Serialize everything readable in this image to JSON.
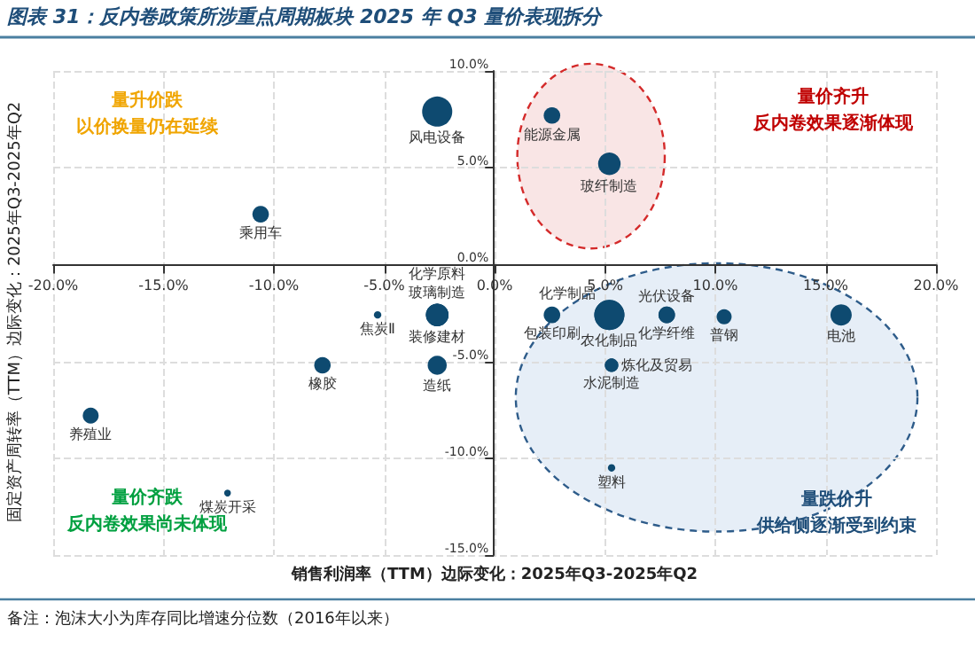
{
  "chart_data": {
    "type": "bubble",
    "title": "图表 31：反内卷政策所涉重点周期板块 2025 年 Q3 量价表现拆分",
    "xlabel": "销售利润率（TTM）边际变化：2025年Q3-2025年Q2",
    "ylabel": "固定资产周转率（TTM）边际变化：2025年Q3-2025年Q2",
    "annotations": [
      "量升价跌",
      "以价换量仍在延续",
      "量价齐升",
      "反内卷效果逐渐体现",
      "量价齐跌",
      "反内卷效果尚未体现",
      "量跌价升",
      "供给侧逐渐受到约束",
      "备注：泡沫大小为库存同比增速分位数（2016年以来）"
    ],
    "xlim": [
      -20,
      20
    ],
    "xticks": [
      {
        "value": -20,
        "label": "-20.0%"
      },
      {
        "value": -15,
        "label": "-15.0%"
      },
      {
        "value": -10,
        "label": "-10.0%"
      },
      {
        "value": -5,
        "label": "-5.0%"
      },
      {
        "value": 0,
        "label": "0.0%"
      },
      {
        "value": 5,
        "label": "5.0%"
      },
      {
        "value": 10,
        "label": "10.0%"
      },
      {
        "value": 15,
        "label": "15.0%"
      },
      {
        "value": 20,
        "label": "20.0%"
      }
    ],
    "ylim": [
      -15,
      10
    ],
    "yticks": [
      {
        "value": -15,
        "label": "-15.0%"
      },
      {
        "value": -10,
        "label": "-10.0%"
      },
      {
        "value": -5,
        "label": "-5.0%"
      },
      {
        "value": 0,
        "label": "0.0%"
      },
      {
        "value": 5,
        "label": "5.0%"
      },
      {
        "value": 10,
        "label": "10.0%"
      }
    ],
    "grid": true,
    "legend": false,
    "series": [
      {
        "name": "风电设备",
        "color": "#0e4a70",
        "x": [
          -2.6
        ],
        "values": [
          7.9
        ],
        "sizes": [
          1
        ]
      },
      {
        "name": "乘用车",
        "color": "#0e4a70",
        "x": [
          -10.6
        ],
        "values": [
          2.6
        ],
        "sizes": [
          0.3
        ]
      },
      {
        "name": "能源金属",
        "color": "#0e4a70",
        "x": [
          2.6
        ],
        "values": [
          7.7
        ],
        "sizes": [
          0.3
        ]
      },
      {
        "name": "玻纤制造",
        "color": "#0e4a70",
        "x": [
          5.2
        ],
        "values": [
          5.2
        ],
        "sizes": [
          0.56
        ]
      },
      {
        "name": "装修建材",
        "color": "#0e4a70",
        "x": [
          -2.6
        ],
        "values": [
          -2.6
        ],
        "sizes": [
          0.56
        ]
      },
      {
        "name": "玻璃制造",
        "color": "#0e4a70",
        "x": [
          -2.6
        ],
        "values": [
          -2.6
        ],
        "sizes": [
          0.56
        ]
      },
      {
        "name": "化学原料",
        "color": "#0e4a70",
        "x": [
          -2.6
        ],
        "values": [
          -2.6
        ],
        "sizes": [
          0.56
        ]
      },
      {
        "name": "焦炭Ⅱ",
        "color": "#0e4a70",
        "x": [
          -5.3
        ],
        "values": [
          -2.6
        ],
        "sizes": [
          0.06
        ]
      },
      {
        "name": "橡胶",
        "color": "#0e4a70",
        "x": [
          -7.8
        ],
        "values": [
          -5.2
        ],
        "sizes": [
          0.3
        ]
      },
      {
        "name": "造纸",
        "color": "#0e4a70",
        "x": [
          -2.6
        ],
        "values": [
          -5.2
        ],
        "sizes": [
          0.4
        ]
      },
      {
        "name": "养殖业",
        "color": "#0e4a70",
        "x": [
          -18.3
        ],
        "values": [
          -7.8
        ],
        "sizes": [
          0.28
        ]
      },
      {
        "name": "煤炭开采",
        "color": "#0e4a70",
        "x": [
          -12.1
        ],
        "values": [
          -11.8
        ],
        "sizes": [
          0.05
        ]
      },
      {
        "name": "包装印刷",
        "color": "#0e4a70",
        "x": [
          2.6
        ],
        "values": [
          -2.6
        ],
        "sizes": [
          0.3
        ]
      },
      {
        "name": "农化制品",
        "color": "#0e4a70",
        "x": [
          5.2
        ],
        "values": [
          -2.6
        ],
        "sizes": [
          1
        ]
      },
      {
        "name": "化学制品",
        "color": "#0e4a70",
        "x": [
          5.2
        ],
        "values": [
          -2.6
        ],
        "sizes": [
          1
        ]
      },
      {
        "name": "化学纤维",
        "color": "#0e4a70",
        "x": [
          7.8
        ],
        "values": [
          -2.6
        ],
        "sizes": [
          0.3
        ]
      },
      {
        "name": "光伏设备",
        "color": "#0e4a70",
        "x": [
          7.8
        ],
        "values": [
          -2.6
        ],
        "sizes": [
          0.3
        ]
      },
      {
        "name": "普钢",
        "color": "#0e4a70",
        "x": [
          10.4
        ],
        "values": [
          -2.7
        ],
        "sizes": [
          0.25
        ]
      },
      {
        "name": "电池",
        "color": "#0e4a70",
        "x": [
          15.7
        ],
        "values": [
          -2.6
        ],
        "sizes": [
          0.5
        ]
      },
      {
        "name": "水泥制造",
        "color": "#0e4a70",
        "x": [
          5.3
        ],
        "values": [
          -5.2
        ],
        "sizes": [
          0.2
        ]
      },
      {
        "name": "炼化及贸易",
        "color": "#0e4a70",
        "x": [
          5.3
        ],
        "values": [
          -5.2
        ],
        "sizes": [
          0.2
        ]
      },
      {
        "name": "塑料",
        "color": "#0e4a70",
        "x": [
          5.3
        ],
        "values": [
          -10.5
        ],
        "sizes": [
          0.06
        ]
      }
    ]
  }
}
